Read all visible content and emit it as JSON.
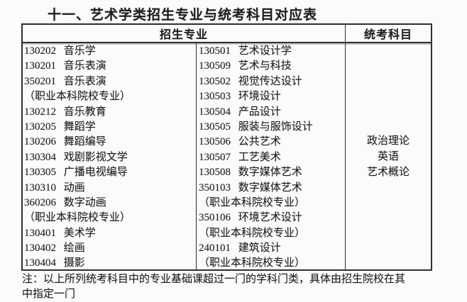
{
  "title": "十一、艺术学类招生专业与统考科目对应表",
  "table": {
    "headers": {
      "majors": "招生专业",
      "subjects": "统考科目"
    },
    "majors_col1": [
      "130202 音乐学",
      "130201 音乐表演",
      "350201 音乐表演",
      "（职业本科院校专业）",
      "130212 音乐教育",
      "130205 舞蹈学",
      "130206 舞蹈编导",
      "130304 戏剧影视文学",
      "130305 广播电视编导",
      "130310 动画",
      "360206 数字动画",
      "（职业本科院校专业）",
      "130401 美术学",
      "130402 绘画",
      "130404 摄影"
    ],
    "majors_col2": [
      "130501 艺术设计学",
      "130509 艺术与科技",
      "130502 视觉传达设计",
      "130503 环境设计",
      "130504 产品设计",
      "130505 服装与服饰设计",
      "130506 公共艺术",
      "130507 工艺美术",
      "130508 数字媒体艺术",
      "350103 数字媒体艺术",
      "（职业本科院校专业）",
      "350106 环境艺术设计",
      "（职业本科院校专业）",
      "240101 建筑设计",
      "（职业本科院校专业）"
    ],
    "subjects": [
      "政治理论",
      "英语",
      "艺术概论"
    ]
  },
  "note_lines": [
    "注：以上所列统考科目中的专业基础课超过一门的学科门类，具体由招生院校在其",
    "中指定一门"
  ],
  "colors": {
    "text": "#1d1d1d",
    "border": "#2f2f2f",
    "background": "#fbfbf9"
  }
}
